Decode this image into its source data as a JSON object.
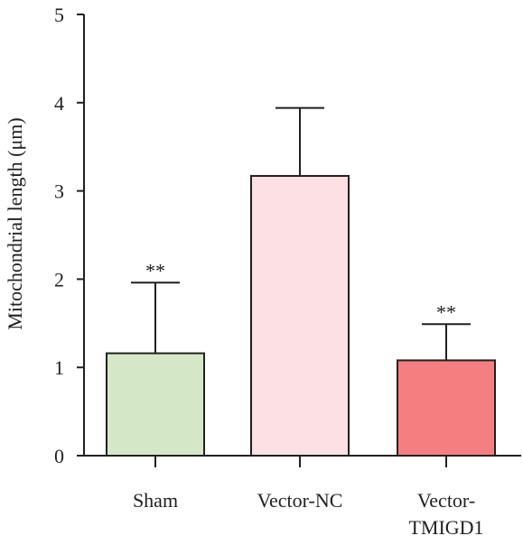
{
  "chart_data": {
    "type": "bar",
    "ylabel": "Mitochondrial length (μm)",
    "ylim": [
      0,
      5
    ],
    "yticks": [
      "0",
      "1",
      "2",
      "3",
      "4",
      "5"
    ],
    "grid": false,
    "categories": [
      {
        "lines": [
          "Sham"
        ]
      },
      {
        "lines": [
          "Vector-NC"
        ]
      },
      {
        "lines": [
          "Vector-",
          "TMIGD1"
        ]
      }
    ],
    "values": [
      1.16,
      3.17,
      1.08
    ],
    "error_upper": [
      1.96,
      3.94,
      1.49
    ],
    "error_lower": [
      0,
      0,
      0
    ],
    "annotations": [
      "**",
      "",
      "**"
    ],
    "colors": [
      "#d4e8c7",
      "#fce0e3",
      "#f47f80"
    ]
  }
}
